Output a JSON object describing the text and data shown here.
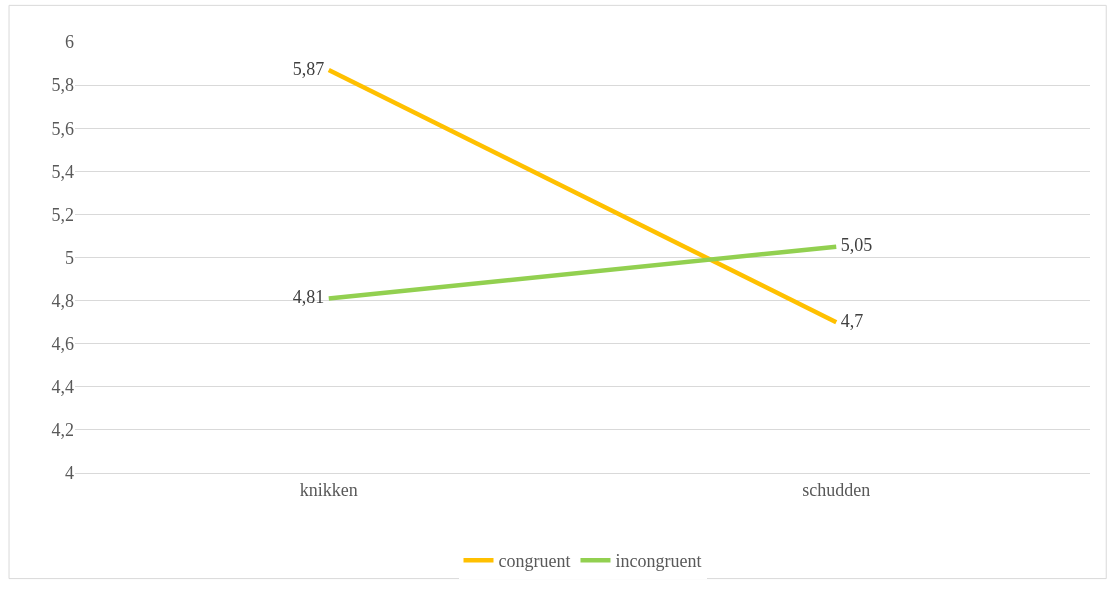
{
  "chart_data": {
    "type": "line",
    "categories": [
      "knikken",
      "schudden"
    ],
    "series": [
      {
        "name": "congruent",
        "color": "#ffc000",
        "values": [
          5.87,
          4.7
        ],
        "value_labels": [
          "5,87",
          "4,7"
        ]
      },
      {
        "name": "incongruent",
        "color": "#92d050",
        "values": [
          4.81,
          5.05
        ],
        "value_labels": [
          "4,81",
          "5,05"
        ]
      }
    ],
    "ylim": [
      4,
      6
    ],
    "yticks": [
      4,
      {
        "value": 4.2,
        "label": "4,2"
      },
      {
        "value": 4.4,
        "label": "4,4"
      },
      {
        "value": 4.6,
        "label": "4,6"
      },
      {
        "value": 4.8,
        "label": "4,8"
      },
      5,
      {
        "value": 5.2,
        "label": "5,2"
      },
      {
        "value": 5.4,
        "label": "5,4"
      },
      {
        "value": 5.6,
        "label": "5,6"
      },
      {
        "value": 5.8,
        "label": "5,8"
      },
      6
    ],
    "grid": "y",
    "legend": "bottom",
    "marker": "none",
    "line_style": "solid"
  }
}
